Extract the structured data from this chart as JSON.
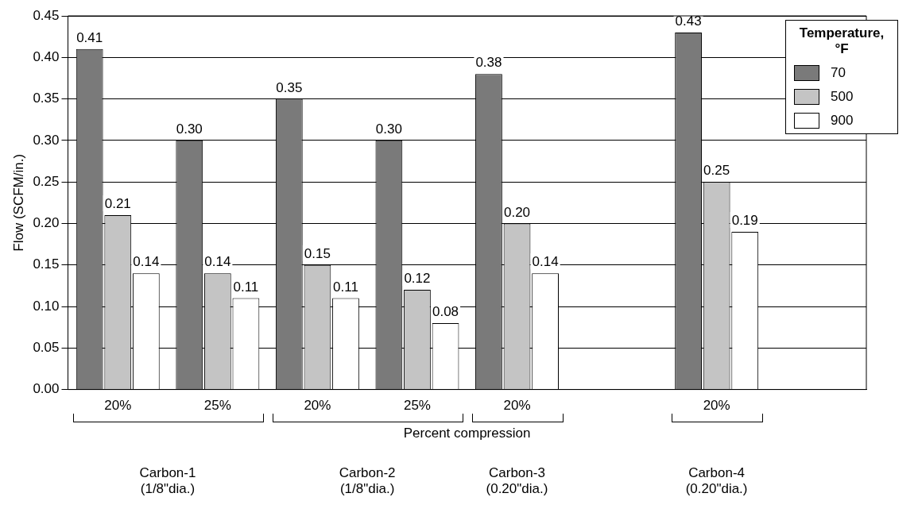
{
  "chart_data": {
    "type": "bar",
    "xlabel": "Percent compression",
    "ylabel": "Flow (SCFM/in.)",
    "legend_title": "Temperature, °F",
    "legend": "top right",
    "grid": "y",
    "categories": [
      "20%",
      "25%",
      "20%",
      "25%",
      "20%",
      null,
      "20%",
      null
    ],
    "series": [
      {
        "name": "70",
        "color": "#7a7a7a",
        "values": [
          0.41,
          0.3,
          0.35,
          0.3,
          0.38,
          null,
          0.43,
          null
        ],
        "value_labels": [
          "0.41",
          "0.30",
          "0.35",
          "0.30",
          "0.38",
          null,
          "0.43",
          null
        ]
      },
      {
        "name": "500",
        "color": "#c4c4c4",
        "values": [
          0.21,
          0.14,
          0.15,
          0.12,
          0.2,
          null,
          0.25,
          null
        ],
        "value_labels": [
          "0.21",
          "0.14",
          "0.15",
          "0.12",
          "0.20",
          null,
          "0.25",
          null
        ]
      },
      {
        "name": "900",
        "color": "#ffffff",
        "values": [
          0.14,
          0.11,
          0.11,
          0.08,
          0.14,
          null,
          0.19,
          null
        ],
        "value_labels": [
          "0.14",
          "0.11",
          "0.11",
          "0.08",
          "0.14",
          null,
          "0.19",
          null
        ]
      }
    ],
    "ylim": [
      0,
      0.45
    ],
    "yticks": [
      {
        "value": 0,
        "label": "0.00"
      },
      {
        "value": 0.05,
        "label": "0.05"
      },
      {
        "value": 0.1,
        "label": "0.10"
      },
      {
        "value": 0.15,
        "label": "0.15"
      },
      {
        "value": 0.2,
        "label": "0.20"
      },
      {
        "value": 0.25,
        "label": "0.25"
      },
      {
        "value": 0.3,
        "label": "0.30"
      },
      {
        "value": 0.35,
        "label": "0.35"
      },
      {
        "value": 0.4,
        "label": "0.40"
      },
      {
        "value": 0.45,
        "label": "0.45"
      }
    ],
    "annotations": [
      "Carbon-1\n(1/8\"dia.)",
      "Carbon-2\n(1/8\"dia.)",
      "Carbon-3\n(0.20\"dia.)",
      "Carbon-4\n(0.20\"dia.)"
    ]
  }
}
